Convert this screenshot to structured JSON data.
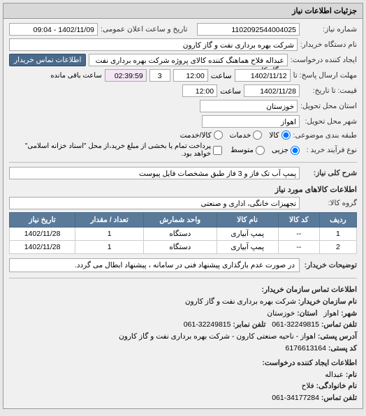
{
  "panel_title": "جزئیات اطلاعات نیاز",
  "fields": {
    "number_label": "شماره نیاز:",
    "number_value": "1102092544004025",
    "announce_label": "تاریخ و ساعت اعلان عمومی:",
    "announce_value": "1402/11/09 - 09:04",
    "buyer_org_label": "نام دستگاه خریدار:",
    "buyer_org_value": "شرکت بهره برداری نفت و گاز کارون",
    "requester_label": "ایجاد کننده درخواست:",
    "requester_value": "عبداله فلاح هماهنگ کننده کالای پروژه شرکت بهره برداری نفت و گاز کارون",
    "contact_btn": "اطلاعات تماس خریدار",
    "response_deadline_label": "مهلت ارسال پاسخ: تا",
    "response_deadline_date": "1402/11/12",
    "time_label1": "ساعت",
    "response_deadline_time": "12:00",
    "remain_days": "3",
    "remain_time": "02:39:59",
    "remain_suffix": "ساعت باقی مانده",
    "price_until_label": "قیمت: تا تاریخ:",
    "price_until_date": "1402/11/28",
    "time_label2": "ساعت",
    "price_until_time": "12:00",
    "province_label": "استان محل تحویل:",
    "province_value": "خوزستان",
    "city_label": "شهر محل تحویل:",
    "city_value": "اهواز",
    "category_label": "طبقه بندی موضوعی:",
    "cat_all": "کالا",
    "cat_service": "خدمات",
    "cat_both": "کالا/خدمت",
    "buy_type_label": "نوع فرآیند خرید :",
    "buy_minor": "جزیی",
    "buy_medium": "متوسط",
    "buy_note": "پرداخت تمام یا بخشی از مبلغ خرید،از محل \"اسناد خزانه اسلامی\" خواهد بود.",
    "desc_label": "شرح کلی نیاز:",
    "desc_value": "پمپ آب تک فاز و 3 فاز طبق مشخصات فایل پیوست",
    "items_title": "اطلاعات کالاهای مورد نیاز",
    "group_label": "گروه کالا:",
    "group_value": "تجهیزات خانگی، اداری و صنعتی",
    "buyer_note_label": "توضیحات خریدار:",
    "buyer_note_value": "در صورت عدم بارگذاری پیشنهاد فنی در سامانه ، پیشنهاد ابطال می گردد."
  },
  "table": {
    "headers": [
      "ردیف",
      "کد کالا",
      "نام کالا",
      "واحد شمارش",
      "تعداد / مقدار",
      "تاریخ نیاز"
    ],
    "rows": [
      [
        "1",
        "--",
        "پمپ آبیاری",
        "دستگاه",
        "1",
        "1402/11/28"
      ],
      [
        "2",
        "--",
        "پمپ آبیاری",
        "دستگاه",
        "1",
        "1402/11/28"
      ]
    ]
  },
  "contact": {
    "title": "اطلاعات تماس سازمان خریدار:",
    "org_label": "نام سازمان خریدار:",
    "org_value": "شرکت بهره برداری نفت و گاز کارون",
    "city_label": "شهر:",
    "city_value": "اهواز",
    "province_label": "استان:",
    "province_value": "خوزستان",
    "phone_label": "تلفن تماس:",
    "phone_value": "32249815-061",
    "fax_label": "تلفن نمابر:",
    "fax_value": "32249815-061",
    "address_label": "آدرس پستی:",
    "address_value": "اهواز - ناحیه صنعتی کارون - شرکت بهره برداری نفت و گاز کارون",
    "postal_label": "کد پستی:",
    "postal_value": "6176613164",
    "req_creator_title": "اطلاعات ایجاد کننده درخواست:",
    "name_label": "نام:",
    "name_value": "عبداله",
    "lname_label": "نام خانوادگی:",
    "lname_value": "فلاح",
    "cphone_label": "تلفن تماس:",
    "cphone_value": "34177284-061"
  }
}
